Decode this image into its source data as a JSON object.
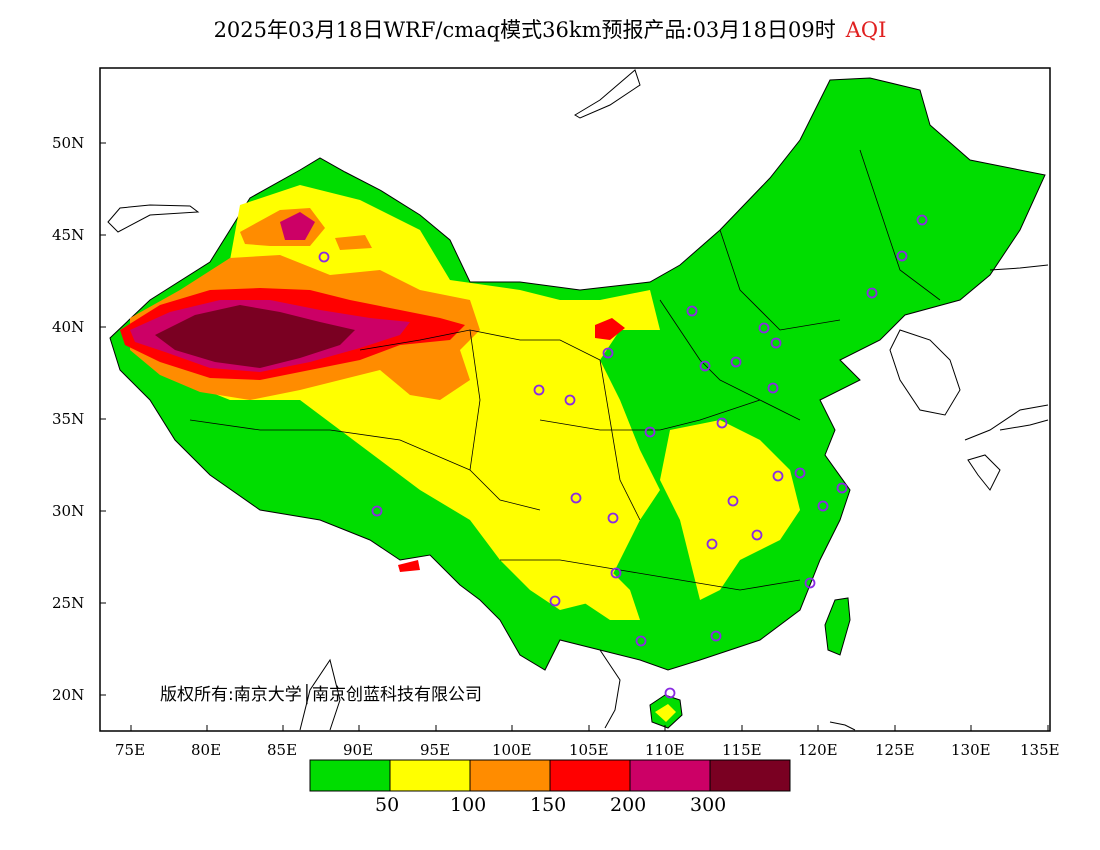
{
  "header": {
    "title": "2025年03月18日WRF/cmaq模式36km预报产品:03月18日09时",
    "variable": "AQI"
  },
  "axes": {
    "lat_labels": [
      "50N",
      "45N",
      "40N",
      "35N",
      "30N",
      "25N",
      "20N"
    ],
    "lon_labels": [
      "75E",
      "80E",
      "85E",
      "90E",
      "95E",
      "100E",
      "105E",
      "110E",
      "115E",
      "120E",
      "125E",
      "130E",
      "135E"
    ]
  },
  "copyright": "版权所有:南京大学│南京创蓝科技有限公司",
  "legend": {
    "colors": [
      "#00dd00",
      "#ffff00",
      "#ff8c00",
      "#ff0000",
      "#cc0066",
      "#7a0022"
    ],
    "labels": [
      "50",
      "100",
      "150",
      "200",
      "300"
    ]
  },
  "colors": {
    "ocean": "#ffffff",
    "good": "#00dd00",
    "moderate": "#ffff00",
    "unhealthy_sensitive": "#ff8c00",
    "unhealthy": "#ff0000",
    "very_unhealthy": "#cc0066",
    "hazardous": "#7a0022",
    "station_marker": "#8a2be2"
  }
}
